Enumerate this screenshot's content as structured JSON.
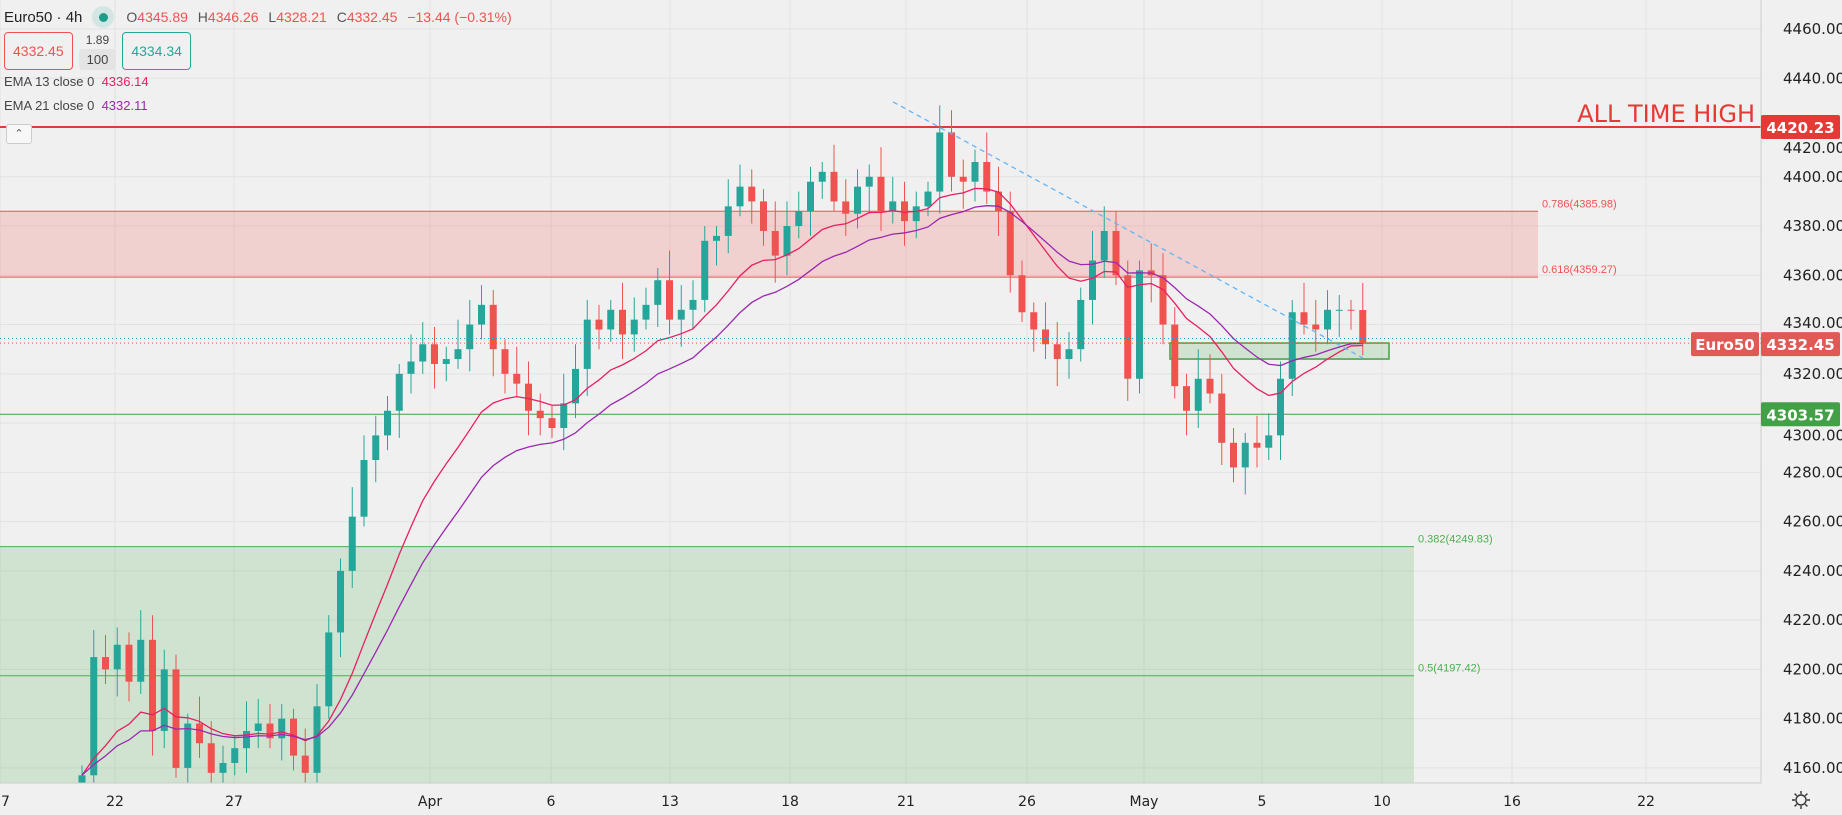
{
  "header": {
    "symbol": "Euro50 · 4h",
    "o_label": "O",
    "o": "4345.89",
    "h_label": "H",
    "h": "4346.26",
    "l_label": "L",
    "l": "4328.21",
    "c_label": "C",
    "c": "4332.45",
    "change": "−13.44 (−0.31%)",
    "sell_price": "4332.45",
    "spread": "1.89",
    "quantity": "100",
    "buy_price": "4334.34",
    "ema13_label": "EMA 13 close 0",
    "ema13_value": "4336.14",
    "ema21_label": "EMA 21 close 0",
    "ema21_value": "4332.11",
    "collapse_icon": "chevron-up-icon"
  },
  "colors": {
    "up": "#26a69a",
    "down": "#ef5350",
    "ema13": "#e91e63",
    "ema21": "#9c27b0",
    "fib_high": "#ef5350",
    "fib_low": "#4caf50",
    "trendline": "#64b5f6",
    "background": "#f0f0f0"
  },
  "chart_data": {
    "type": "candlestick",
    "symbol": "Euro50",
    "interval": "4h",
    "ylim": [
      4152,
      4472
    ],
    "y_ticks": [
      "4460.00",
      "4440.00",
      "4420.00",
      "4400.00",
      "4380.00",
      "4360.00",
      "4340.00",
      "4320.00",
      "4300.00",
      "4280.00",
      "4260.00",
      "4240.00",
      "4220.00",
      "4200.00",
      "4180.00",
      "4160.00"
    ],
    "x_ticks": [
      "7",
      "22",
      "27",
      "Apr",
      "6",
      "13",
      "18",
      "21",
      "26",
      "May",
      "5",
      "10",
      "16",
      "22"
    ],
    "first_open": 4150,
    "closes": [
      4157,
      4205,
      4200,
      4210,
      4195,
      4212,
      4175,
      4200,
      4160,
      4178,
      4170,
      4158,
      4162,
      4168,
      4175,
      4178,
      4172,
      4180,
      4165,
      4158,
      4185,
      4215,
      4240,
      4262,
      4285,
      4295,
      4305,
      4320,
      4325,
      4332,
      4324,
      4326,
      4330,
      4340,
      4348,
      4330,
      4320,
      4316,
      4305,
      4302,
      4298,
      4308,
      4322,
      4342,
      4338,
      4346,
      4336,
      4342,
      4348,
      4358,
      4342,
      4346,
      4350,
      4374,
      4376,
      4388,
      4396,
      4390,
      4378,
      4368,
      4380,
      4386,
      4398,
      4402,
      4390,
      4385,
      4396,
      4400,
      4386,
      4390,
      4382,
      4388,
      4394,
      4418,
      4400,
      4398,
      4406,
      4394,
      4386,
      4360,
      4345,
      4338,
      4332,
      4326,
      4330,
      4350,
      4366,
      4378,
      4360,
      4318,
      4362,
      4360,
      4340,
      4315,
      4305,
      4318,
      4312,
      4292,
      4282,
      4292,
      4290,
      4295,
      4318,
      4345,
      4340,
      4338,
      4346,
      4346,
      4345.89,
      4332.45
    ],
    "ema_periods": [
      13,
      21
    ],
    "all_time_high": {
      "label": "ALL TIME HIGH",
      "price": 4420.23,
      "price_label": "4420.23"
    },
    "current_price": {
      "symbol_label": "Euro50",
      "price": 4332.45,
      "price_label": "4332.45",
      "ask": 4334.34
    },
    "support": {
      "price": 4303.57,
      "price_label": "4303.57"
    },
    "fib_levels": [
      {
        "label": "0.786(4385.98)",
        "price": 4385.98
      },
      {
        "label": "0.618(4359.27)",
        "price": 4359.27
      },
      {
        "label": "0.382(4249.83)",
        "price": 4249.83
      },
      {
        "label": "0.5(4197.42)",
        "price": 4197.42
      }
    ],
    "zone": {
      "top": 4332.5,
      "bottom": 4326
    },
    "trendline": {
      "from": 4430.4,
      "to": 4326.4
    },
    "settings_icon": "gear-icon"
  }
}
